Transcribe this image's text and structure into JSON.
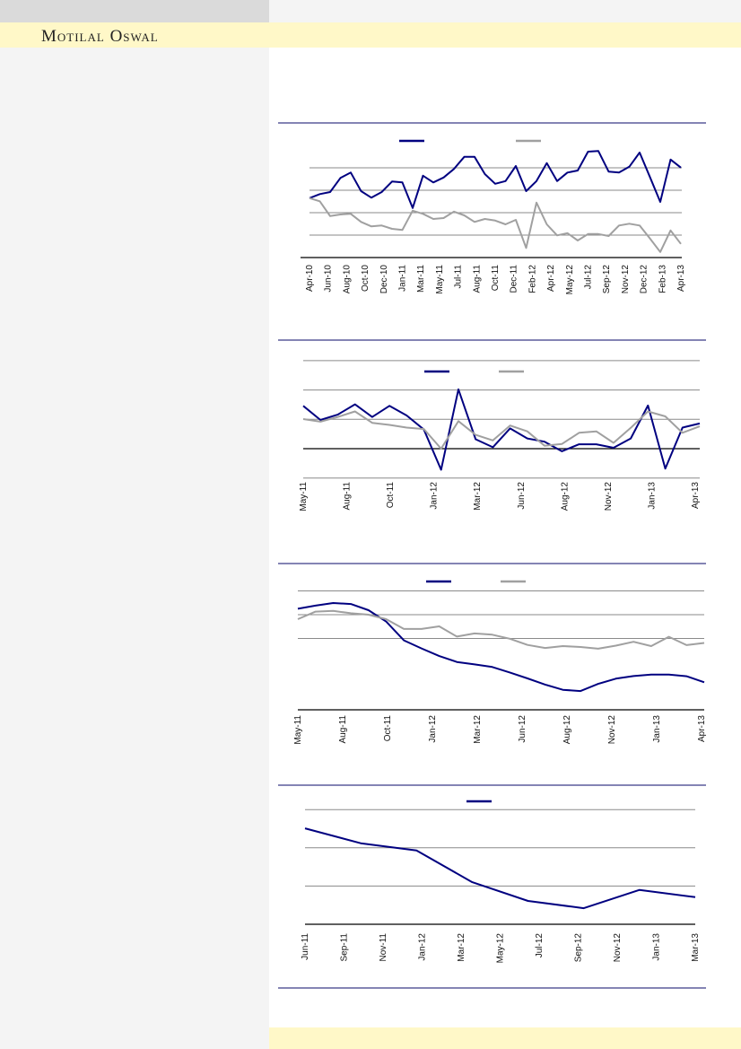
{
  "header": {
    "brand": "Motilal Oswal"
  },
  "colors": {
    "series_primary": "#000080",
    "series_secondary": "#a0a0a0",
    "rule": "#0a0a6a",
    "band": "#fff8c8"
  },
  "chart_data": [
    {
      "type": "line",
      "title": "",
      "xlabel": "",
      "ylabel": "",
      "ylim": [
        0,
        5.2
      ],
      "grid": [
        1,
        2,
        3,
        4
      ],
      "legend": "top-center",
      "tick_labels": [
        "Apr-10",
        "Jun-10",
        "Aug-10",
        "Oct-10",
        "Dec-10",
        "Jan-11",
        "Mar-11",
        "May-11",
        "Jul-11",
        "Aug-11",
        "Oct-11",
        "Dec-11",
        "Feb-12",
        "Apr-12",
        "May-12",
        "Jul-12",
        "Sep-12",
        "Nov-12",
        "Dec-12",
        "Feb-13",
        "Apr-13"
      ],
      "series": [
        {
          "name": "",
          "color": "#000080",
          "values": [
            2.65,
            2.83,
            2.92,
            3.55,
            3.79,
            2.96,
            2.67,
            2.92,
            3.39,
            3.35,
            2.21,
            3.65,
            3.35,
            3.57,
            3.95,
            4.49,
            4.49,
            3.72,
            3.29,
            3.41,
            4.08,
            2.96,
            3.41,
            4.21,
            3.41,
            3.79,
            3.88,
            4.72,
            4.75,
            3.83,
            3.79,
            4.05,
            4.68,
            3.59,
            2.48,
            4.37,
            4.01
          ]
        },
        {
          "name": "",
          "color": "#a0a0a0",
          "values": [
            2.65,
            2.51,
            1.85,
            1.92,
            1.95,
            1.59,
            1.39,
            1.43,
            1.28,
            1.23,
            2.09,
            1.95,
            1.72,
            1.76,
            2.05,
            1.88,
            1.59,
            1.72,
            1.65,
            1.48,
            1.68,
            0.43,
            2.45,
            1.48,
            0.99,
            1.09,
            0.76,
            1.05,
            1.05,
            0.96,
            1.43,
            1.51,
            1.43,
            0.85,
            0.25,
            1.21,
            0.61
          ]
        }
      ]
    },
    {
      "type": "line",
      "title": "",
      "xlabel": "",
      "ylabel": "",
      "ylim": [
        -1.05,
        3
      ],
      "grid": [
        -1,
        1,
        2,
        3
      ],
      "legend": "top-center",
      "tick_labels": [
        "May-11",
        "Aug-11",
        "Oct-11",
        "Jan-12",
        "Mar-12",
        "Jun-12",
        "Aug-12",
        "Nov-12",
        "Jan-13",
        "Apr-13"
      ],
      "series": [
        {
          "name": "",
          "color": "#000080",
          "values": [
            1.46,
            0.98,
            1.16,
            1.51,
            1.08,
            1.46,
            1.13,
            0.65,
            -0.72,
            2.02,
            0.32,
            0.05,
            0.69,
            0.35,
            0.24,
            -0.09,
            0.15,
            0.15,
            0.03,
            0.35,
            1.47,
            -0.68,
            0.72,
            0.86
          ]
        },
        {
          "name": "",
          "color": "#a0a0a0",
          "values": [
            1.01,
            0.92,
            1.08,
            1.27,
            0.88,
            0.81,
            0.72,
            0.67,
            0.0,
            0.94,
            0.47,
            0.28,
            0.79,
            0.59,
            0.1,
            0.16,
            0.54,
            0.59,
            0.2,
            0.71,
            1.27,
            1.1,
            0.54,
            0.76
          ]
        }
      ]
    },
    {
      "type": "line",
      "title": "",
      "xlabel": "",
      "ylabel": "",
      "ylim": [
        0,
        5.3
      ],
      "grid": [
        3,
        4,
        5
      ],
      "legend": "top-center",
      "tick_labels": [
        "May-11",
        "Aug-11",
        "Oct-11",
        "Jan-12",
        "Mar-12",
        "Jun-12",
        "Aug-12",
        "Nov-12",
        "Jan-13",
        "Apr-13"
      ],
      "series": [
        {
          "name": "",
          "color": "#000080",
          "values": [
            4.25,
            4.38,
            4.49,
            4.45,
            4.19,
            3.71,
            2.92,
            2.58,
            2.26,
            2.01,
            1.91,
            1.8,
            1.57,
            1.32,
            1.06,
            0.84,
            0.79,
            1.09,
            1.31,
            1.42,
            1.48,
            1.48,
            1.41,
            1.16
          ]
        },
        {
          "name": "",
          "color": "#a0a0a0",
          "values": [
            3.81,
            4.13,
            4.16,
            4.06,
            4.0,
            3.81,
            3.4,
            3.4,
            3.51,
            3.08,
            3.21,
            3.16,
            2.99,
            2.73,
            2.6,
            2.68,
            2.64,
            2.57,
            2.7,
            2.86,
            2.68,
            3.07,
            2.72,
            2.81
          ]
        }
      ]
    },
    {
      "type": "line",
      "title": "",
      "xlabel": "",
      "ylabel": "",
      "ylim": [
        0,
        3.2
      ],
      "grid": [
        1,
        2,
        3
      ],
      "legend": "top-center",
      "tick_labels": [
        "Jun-11",
        "Sep-11",
        "Nov-11",
        "Jan-12",
        "Mar-12",
        "May-12",
        "Jul-12",
        "Sep-12",
        "Nov-12",
        "Jan-13",
        "Mar-13"
      ],
      "series": [
        {
          "name": "",
          "color": "#000080",
          "values": [
            2.51,
            2.12,
            1.93,
            1.1,
            0.61,
            0.42,
            0.9,
            0.71
          ]
        }
      ]
    }
  ]
}
